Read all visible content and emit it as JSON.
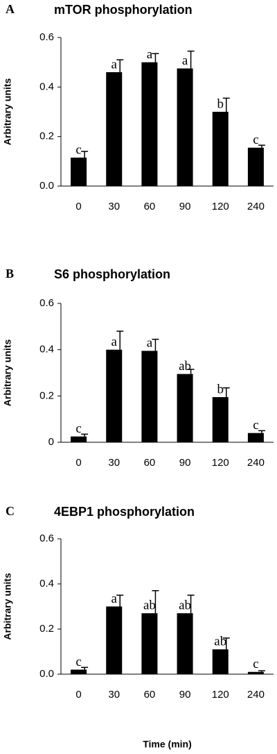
{
  "chart_data": [
    {
      "type": "bar",
      "panel": "A",
      "title": "mTOR phosphorylation",
      "y_label": "Arbitrary units",
      "categories": [
        "0",
        "30",
        "60",
        "90",
        "120",
        "240"
      ],
      "values": [
        0.115,
        0.46,
        0.5,
        0.475,
        0.3,
        0.155
      ],
      "errors": [
        0.025,
        0.05,
        0.035,
        0.07,
        0.055,
        0.01
      ],
      "annotations": [
        "c",
        "a",
        "a",
        "a",
        "b",
        "c"
      ],
      "color": "#000000",
      "ylim": [
        0,
        0.6
      ],
      "yticks": [
        {
          "value": 0,
          "label": "0.0"
        },
        0.2,
        0.4,
        0.6
      ]
    },
    {
      "type": "bar",
      "panel": "B",
      "title": "S6 phosphorylation",
      "y_label": "Arbitrary units",
      "categories": [
        "0",
        "30",
        "60",
        "90",
        "120",
        "240"
      ],
      "values": [
        0.025,
        0.4,
        0.395,
        0.295,
        0.195,
        0.04
      ],
      "errors": [
        0.01,
        0.08,
        0.05,
        0.02,
        0.04,
        0.01
      ],
      "annotations": [
        "c",
        "a",
        "a",
        "ab",
        "b",
        "c"
      ],
      "color": "#000000",
      "ylim": [
        0,
        0.6
      ],
      "yticks": [
        0,
        0.2,
        0.4,
        0.6
      ]
    },
    {
      "type": "bar",
      "panel": "C",
      "title": "4EBP1 phosphorylation",
      "y_label": "Arbitrary units",
      "x_label": "Time (min)",
      "categories": [
        "0",
        "30",
        "60",
        "90",
        "120",
        "240"
      ],
      "values": [
        0.02,
        0.3,
        0.27,
        0.27,
        0.11,
        0.01
      ],
      "errors": [
        0.01,
        0.05,
        0.1,
        0.08,
        0.05,
        0.005
      ],
      "annotations": [
        "c",
        "a",
        "ab",
        "ab",
        "ab",
        "c"
      ],
      "color": "#000000",
      "ylim": [
        0,
        0.6
      ],
      "yticks": [
        {
          "value": 0,
          "label": "0.0"
        },
        0.2,
        0.4,
        0.6
      ]
    }
  ]
}
